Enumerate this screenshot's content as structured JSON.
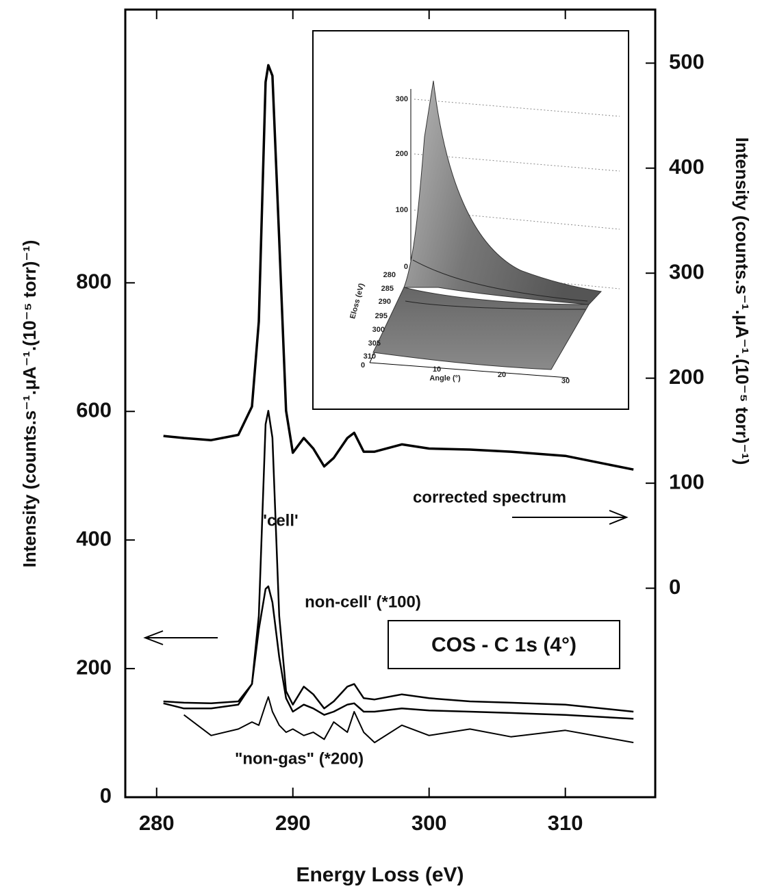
{
  "chart_data": {
    "type": "line",
    "x_label": "Energy Loss (eV)",
    "y_label": "Intensity (counts.s⁻¹.μA⁻¹.(10⁻⁵ torr)⁻¹)",
    "y2_label": "Intensity (counts.s⁻¹.μA⁻¹.(10⁻⁵ torr)⁻¹)",
    "annotation": "COS - C 1s (4°)",
    "x": [
      280.5,
      282,
      284,
      286,
      287,
      287.5,
      288,
      288.2,
      288.5,
      289,
      289.5,
      290,
      290.8,
      291.5,
      292.3,
      293,
      294,
      294.5,
      295.2,
      296,
      298,
      300,
      303,
      306,
      310,
      315
    ],
    "xlim": [
      277.7,
      316.6
    ],
    "xticks": [
      280,
      290,
      300,
      310
    ],
    "ylim": [
      0,
      1225
    ],
    "yticks": [
      0,
      200,
      400,
      600,
      800
    ],
    "y2lim": [
      -199,
      551
    ],
    "y2ticks": [
      0,
      100,
      200,
      300,
      400,
      500
    ],
    "series": [
      {
        "name": "corrected spectrum",
        "color": "#000000",
        "axis": "y2",
        "values": [
          145,
          143,
          141,
          146,
          173,
          254,
          482,
          498,
          488,
          332,
          169,
          129,
          143,
          133,
          116,
          124,
          143,
          148,
          130,
          130,
          137,
          133,
          132,
          130,
          126,
          113
        ]
      },
      {
        "name": "'cell'",
        "color": "#000000",
        "values": [
          149,
          147,
          146,
          149,
          176,
          282,
          580,
          601,
          559,
          282,
          165,
          144,
          172,
          160,
          138,
          149,
          172,
          176,
          154,
          152,
          160,
          154,
          149,
          147,
          144,
          133
        ]
      },
      {
        "name": "non-cell'  (*100)",
        "color": "#000000",
        "values": [
          146,
          138,
          138,
          144,
          176,
          261,
          324,
          328,
          303,
          218,
          154,
          133,
          144,
          138,
          128,
          133,
          144,
          146,
          133,
          133,
          138,
          135,
          133,
          131,
          128,
          122
        ]
      },
      {
        "name": "\"non-gas\" (*200)",
        "color": "#000000",
        "values": [
          null,
          128,
          96,
          106,
          117,
          112,
          144,
          156,
          133,
          112,
          101,
          106,
          96,
          101,
          90,
          117,
          101,
          133,
          101,
          85,
          112,
          96,
          106,
          94,
          104,
          85
        ]
      }
    ],
    "inset": {
      "z_ticks": [
        "300",
        "200",
        "100",
        "0"
      ],
      "energy_ticks": [
        "280",
        "285",
        "290",
        "295",
        "300",
        "305",
        "310"
      ],
      "energy_label": "Eloss (eV)",
      "angle_ticks": [
        "0",
        "10",
        "20",
        "30"
      ],
      "angle_label": "Angle (°)"
    }
  }
}
